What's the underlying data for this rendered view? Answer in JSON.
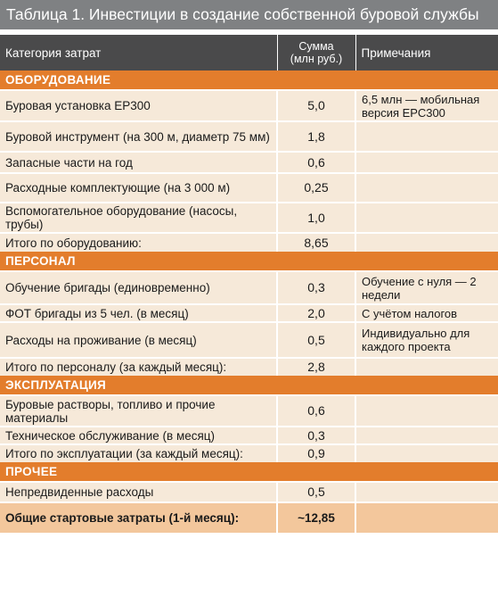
{
  "title": "Таблица 1. Инвестиции в создание собственной буровой службы",
  "header": {
    "category": "Категория затрат",
    "sum_line1": "Сумма",
    "sum_line2": "(млн руб.)",
    "notes": "Примечания"
  },
  "sections": [
    {
      "name": "ОБОРУДОВАНИЕ",
      "rows": [
        {
          "category": "Буровая установка ЕР300",
          "sum": "5,0",
          "note": "6,5 млн — мобильная версия ЕРС300"
        },
        {
          "category": "Буровой инструмент (на 300 м, диаметр 75 мм)",
          "sum": "1,8",
          "note": ""
        },
        {
          "category": "Запасные части на год",
          "sum": "0,6",
          "note": ""
        },
        {
          "category": "Расходные комплектующие (на 3 000 м)",
          "sum": "0,25",
          "note": ""
        },
        {
          "category": "Вспомогательное оборудование (насосы, трубы)",
          "sum": "1,0",
          "note": ""
        },
        {
          "category": "Итого по оборудованию:",
          "sum": "8,65",
          "note": ""
        }
      ]
    },
    {
      "name": "ПЕРСОНАЛ",
      "rows": [
        {
          "category": "Обучение бригады (единовременно)",
          "sum": "0,3",
          "note": "Обучение с нуля — 2 недели"
        },
        {
          "category": "ФОТ бригады из 5 чел. (в месяц)",
          "sum": "2,0",
          "note": "С учётом налогов"
        },
        {
          "category": "Расходы на проживание (в месяц)",
          "sum": "0,5",
          "note": "Индивидуально для каждого проекта"
        },
        {
          "category": "Итого по персоналу (за каждый месяц):",
          "sum": "2,8",
          "note": ""
        }
      ]
    },
    {
      "name": "ЭКСПЛУАТАЦИЯ",
      "rows": [
        {
          "category": "Буровые растворы, топливо и прочие материалы",
          "sum": "0,6",
          "note": ""
        },
        {
          "category": "Техническое обслуживание (в месяц)",
          "sum": "0,3",
          "note": ""
        },
        {
          "category": "Итого по эксплуатации (за каждый месяц):",
          "sum": "0,9",
          "note": ""
        }
      ]
    },
    {
      "name": "ПРОЧЕЕ",
      "rows": [
        {
          "category": "Непредвиденные расходы",
          "sum": "0,5",
          "note": ""
        }
      ]
    }
  ],
  "total": {
    "category": "Общие стартовые затраты (1-й месяц):",
    "sum": "~12,85",
    "note": ""
  }
}
